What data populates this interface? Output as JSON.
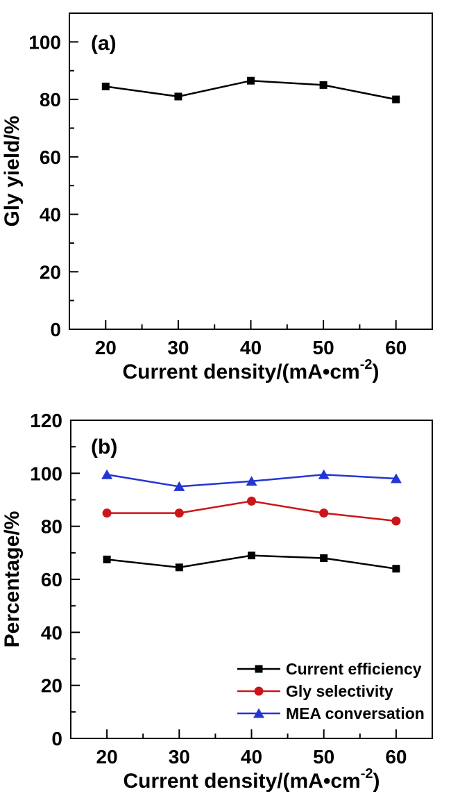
{
  "figure": {
    "background": "#ffffff",
    "text_color": "#000000"
  },
  "chart_data": [
    {
      "type": "line",
      "panel_label": "(a)",
      "title": "",
      "xlabel": {
        "main": "Current density/(mA•cm",
        "sup": "-2",
        "close": ")"
      },
      "ylabel": "Gly yield/%",
      "x": [
        20,
        30,
        40,
        50,
        60
      ],
      "xlim": [
        15,
        65
      ],
      "ylim": [
        0,
        110
      ],
      "x_major_ticks": [
        20,
        30,
        40,
        50,
        60
      ],
      "x_minor_ticks": [
        25,
        35,
        45,
        55
      ],
      "y_major_ticks": [
        0,
        20,
        40,
        60,
        80,
        100
      ],
      "y_minor_ticks": [
        10,
        30,
        50,
        70,
        90
      ],
      "grid": false,
      "legend": null,
      "series": [
        {
          "name": "Gly yield",
          "marker": "square",
          "color": "#000000",
          "values": [
            84.5,
            81,
            86.5,
            85,
            80
          ]
        }
      ]
    },
    {
      "type": "line",
      "panel_label": "(b)",
      "title": "",
      "xlabel": {
        "main": "Current density/(mA•cm",
        "sup": "-2",
        "close": ")"
      },
      "ylabel": "Percentage/%",
      "x": [
        20,
        30,
        40,
        50,
        60
      ],
      "xlim": [
        15,
        65
      ],
      "ylim": [
        0,
        120
      ],
      "x_major_ticks": [
        20,
        30,
        40,
        50,
        60
      ],
      "x_minor_ticks": [
        25,
        35,
        45,
        55
      ],
      "y_major_ticks": [
        0,
        20,
        40,
        60,
        80,
        100,
        120
      ],
      "y_minor_ticks": [
        10,
        30,
        50,
        70,
        90,
        110
      ],
      "grid": false,
      "legend": {
        "position": "lower-right",
        "entries": [
          "Current efficiency",
          "Gly selectivity",
          "MEA conversation"
        ]
      },
      "series": [
        {
          "name": "Current efficiency",
          "marker": "square",
          "color": "#000000",
          "values": [
            67.5,
            64.5,
            69,
            68,
            64
          ]
        },
        {
          "name": "Gly selectivity",
          "marker": "circle",
          "color": "#cc1518",
          "values": [
            85,
            85,
            89.5,
            85,
            82
          ]
        },
        {
          "name": "MEA conversation",
          "marker": "triangle",
          "color": "#2436d2",
          "values": [
            99.5,
            95,
            97,
            99.5,
            98
          ]
        }
      ]
    }
  ]
}
